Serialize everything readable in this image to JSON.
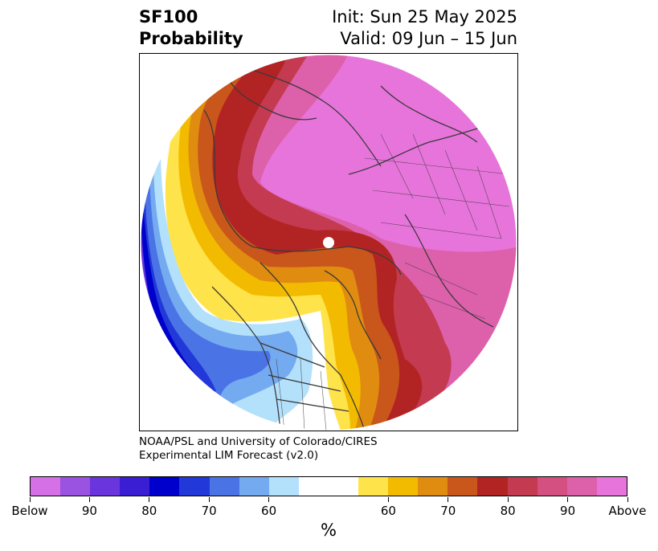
{
  "header": {
    "title_line1": "SF100",
    "title_line2": "Probability",
    "init": "Init: Sun 25 May 2025",
    "valid": "Valid: 09 Jun – 15 Jun"
  },
  "credit": {
    "line1": "NOAA/PSL and University of Colorado/CIRES",
    "line2": "Experimental LIM Forecast (v2.0)"
  },
  "colorbar": {
    "unit": "%",
    "colors": [
      "#d670e6",
      "#9a53e0",
      "#6a35dc",
      "#3a1ed4",
      "#0000cc",
      "#2238d8",
      "#4a73e6",
      "#74aaf0",
      "#b3e0fb",
      "#ffffff",
      "#ffffff",
      "#ffe34a",
      "#f3bb00",
      "#e08c10",
      "#c9561a",
      "#b22424",
      "#c43a50",
      "#d45080",
      "#dd60ab",
      "#e774db"
    ],
    "tick_labels": [
      "Below",
      "90",
      "80",
      "70",
      "60",
      "60",
      "70",
      "80",
      "90",
      "Above"
    ]
  },
  "map": {
    "projection": "north-polar-stereographic",
    "colors": {
      "above_high": "#e774db",
      "above_90": "#dd60ab",
      "above_80": "#c43a50",
      "above_70": "#b22424",
      "warm_orange": "#c9561a",
      "warm_amber": "#e08c10",
      "warm_gold": "#f3bb00",
      "warm_yellow": "#ffe34a",
      "neutral": "#ffffff",
      "cold_light": "#b3e0fb",
      "cold_sky": "#74aaf0",
      "cold_mid": "#4a73e6",
      "cold_royal": "#2238d8",
      "cold_deep": "#0000cc",
      "below": "#6a35dc",
      "coast": "#3a3a3a"
    }
  }
}
